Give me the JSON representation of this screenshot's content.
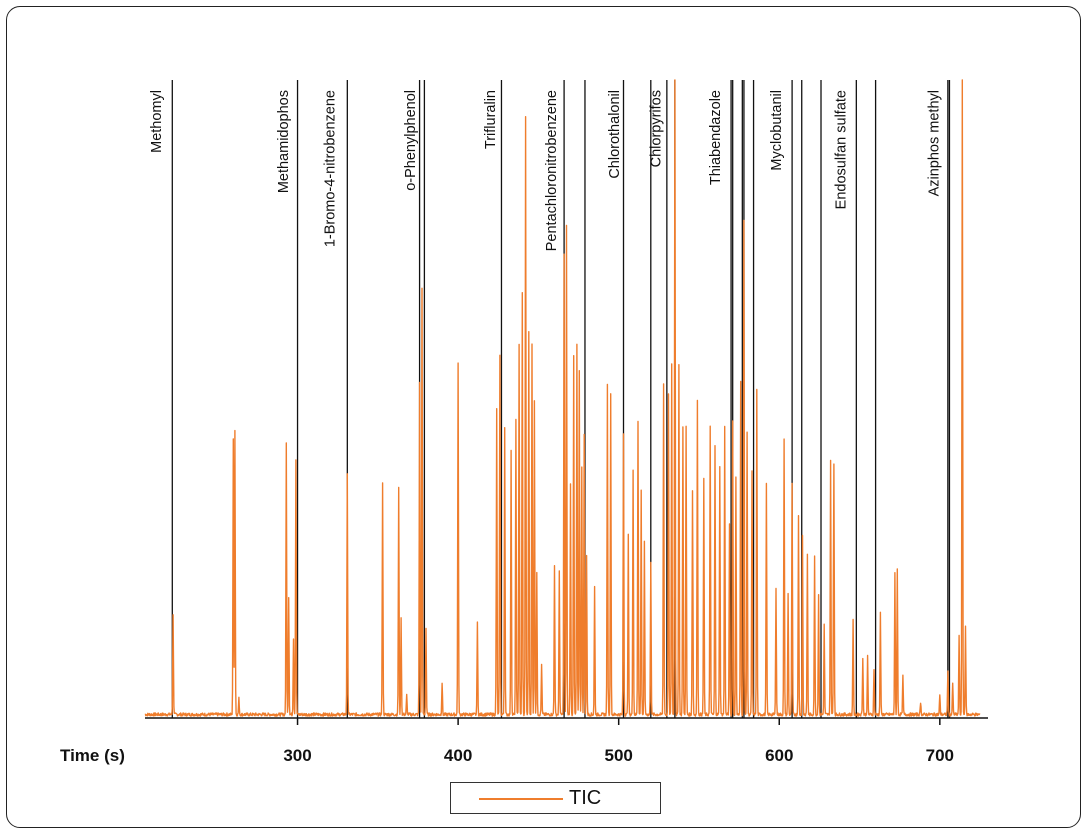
{
  "chart_data": {
    "type": "line",
    "title": "",
    "xlabel": "Time (s)",
    "ylabel": "",
    "xlim": [
      205,
      730
    ],
    "ylim": [
      0,
      100
    ],
    "x_ticks": [
      300,
      400,
      500,
      600,
      700
    ],
    "grid": false,
    "legend": {
      "position": "bottom-center",
      "entries": [
        "TIC"
      ]
    },
    "series": [
      {
        "name": "TIC",
        "color": "#ef7d2c",
        "peaks": [
          {
            "x": 222.5,
            "y": 15.5
          },
          {
            "x": 260,
            "y": 43
          },
          {
            "x": 261,
            "y": 44.5
          },
          {
            "x": 263.5,
            "y": 2.5
          },
          {
            "x": 293,
            "y": 42.5
          },
          {
            "x": 294.5,
            "y": 18.5
          },
          {
            "x": 297.5,
            "y": 12
          },
          {
            "x": 299,
            "y": 40
          },
          {
            "x": 331,
            "y": 37.5
          },
          {
            "x": 353,
            "y": 36.5
          },
          {
            "x": 363,
            "y": 35.5
          },
          {
            "x": 364.5,
            "y": 15
          },
          {
            "x": 368,
            "y": 3
          },
          {
            "x": 376,
            "y": 52
          },
          {
            "x": 377.5,
            "y": 67
          },
          {
            "x": 380,
            "y": 13.5
          },
          {
            "x": 390,
            "y": 5
          },
          {
            "x": 400,
            "y": 55
          },
          {
            "x": 412,
            "y": 14.5
          },
          {
            "x": 424,
            "y": 48
          },
          {
            "x": 426,
            "y": 56.5
          },
          {
            "x": 429,
            "y": 45
          },
          {
            "x": 433,
            "y": 41.5
          },
          {
            "x": 436,
            "y": 46
          },
          {
            "x": 438,
            "y": 58
          },
          {
            "x": 440,
            "y": 66
          },
          {
            "x": 442,
            "y": 93.5
          },
          {
            "x": 444,
            "y": 60
          },
          {
            "x": 446,
            "y": 58
          },
          {
            "x": 447.5,
            "y": 49
          },
          {
            "x": 449,
            "y": 22
          },
          {
            "x": 452,
            "y": 8
          },
          {
            "x": 460,
            "y": 23.5
          },
          {
            "x": 463,
            "y": 22.5
          },
          {
            "x": 466,
            "y": 72
          },
          {
            "x": 467.5,
            "y": 76.5
          },
          {
            "x": 470,
            "y": 36
          },
          {
            "x": 472,
            "y": 56
          },
          {
            "x": 474,
            "y": 58
          },
          {
            "x": 475.5,
            "y": 54
          },
          {
            "x": 477,
            "y": 39
          },
          {
            "x": 478.5,
            "y": 44
          },
          {
            "x": 480,
            "y": 25
          },
          {
            "x": 485,
            "y": 20
          },
          {
            "x": 493,
            "y": 51.5
          },
          {
            "x": 495,
            "y": 50.5
          },
          {
            "x": 503,
            "y": 44
          },
          {
            "x": 506,
            "y": 28
          },
          {
            "x": 509,
            "y": 38.5
          },
          {
            "x": 512,
            "y": 46
          },
          {
            "x": 514,
            "y": 35
          },
          {
            "x": 516,
            "y": 27
          },
          {
            "x": 520,
            "y": 24
          },
          {
            "x": 528,
            "y": 52
          },
          {
            "x": 531,
            "y": 50
          },
          {
            "x": 533,
            "y": 55
          },
          {
            "x": 535,
            "y": 100
          },
          {
            "x": 537.5,
            "y": 55
          },
          {
            "x": 540,
            "y": 45
          },
          {
            "x": 542,
            "y": 45
          },
          {
            "x": 546,
            "y": 35
          },
          {
            "x": 549,
            "y": 49
          },
          {
            "x": 553,
            "y": 37
          },
          {
            "x": 557,
            "y": 45
          },
          {
            "x": 560,
            "y": 42
          },
          {
            "x": 563,
            "y": 39
          },
          {
            "x": 566,
            "y": 45
          },
          {
            "x": 569,
            "y": 30
          },
          {
            "x": 571,
            "y": 46
          },
          {
            "x": 573,
            "y": 37
          },
          {
            "x": 576,
            "y": 52
          },
          {
            "x": 578,
            "y": 77.5
          },
          {
            "x": 580,
            "y": 44
          },
          {
            "x": 583,
            "y": 38
          },
          {
            "x": 586,
            "y": 51
          },
          {
            "x": 592,
            "y": 36
          },
          {
            "x": 598,
            "y": 20
          },
          {
            "x": 603,
            "y": 43
          },
          {
            "x": 605.5,
            "y": 19
          },
          {
            "x": 608,
            "y": 36
          },
          {
            "x": 612,
            "y": 31
          },
          {
            "x": 614.5,
            "y": 28
          },
          {
            "x": 617.5,
            "y": 25
          },
          {
            "x": 622,
            "y": 25
          },
          {
            "x": 624.5,
            "y": 19
          },
          {
            "x": 628,
            "y": 14
          },
          {
            "x": 632,
            "y": 40
          },
          {
            "x": 634,
            "y": 39.5
          },
          {
            "x": 646,
            "y": 15
          },
          {
            "x": 652,
            "y": 9
          },
          {
            "x": 655,
            "y": 9
          },
          {
            "x": 659,
            "y": 7
          },
          {
            "x": 663,
            "y": 16
          },
          {
            "x": 672,
            "y": 22
          },
          {
            "x": 673.5,
            "y": 23
          },
          {
            "x": 677,
            "y": 6
          },
          {
            "x": 688,
            "y": 2
          },
          {
            "x": 700,
            "y": 3
          },
          {
            "x": 705,
            "y": 7
          },
          {
            "x": 708,
            "y": 5
          },
          {
            "x": 712,
            "y": 12.5
          },
          {
            "x": 714,
            "y": 100
          },
          {
            "x": 716,
            "y": 14
          }
        ]
      }
    ],
    "annotation_lines": [
      222,
      300,
      331,
      376,
      379,
      427,
      466,
      479,
      503,
      520,
      530,
      535,
      570,
      571,
      577,
      578,
      584,
      608,
      614,
      626,
      648,
      660,
      705,
      706
    ],
    "annotations": [
      {
        "label": "Methomyl",
        "x": 212
      },
      {
        "label": "Methamidophos",
        "x": 291
      },
      {
        "label": "1-Bromo-4-nitrobenzene",
        "x": 320
      },
      {
        "label": "o-Phenylphenol",
        "x": 370
      },
      {
        "label": "Trifluralin",
        "x": 420
      },
      {
        "label": "Pentachloronitrobenzene",
        "x": 458
      },
      {
        "label": "Chlorothalonil",
        "x": 497
      },
      {
        "label": "Chlorpyrifos",
        "x": 523
      },
      {
        "label": "Thiabendazole",
        "x": 560
      },
      {
        "label": "Myclobutanil",
        "x": 598
      },
      {
        "label": "Endosulfan sulfate",
        "x": 638
      },
      {
        "label": "Azinphos methyl",
        "x": 696
      }
    ]
  }
}
